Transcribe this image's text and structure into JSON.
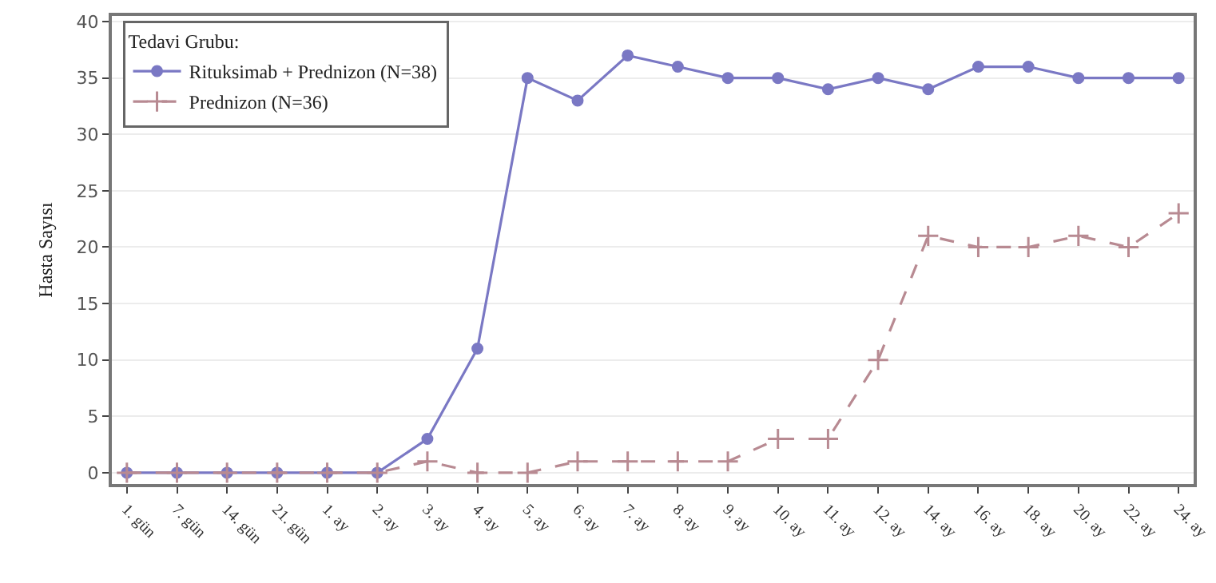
{
  "chart_data": {
    "type": "line",
    "ylabel": "Hasta Sayısı",
    "legend_title": "Tedavi Grubu:",
    "legend": "top left",
    "categories": [
      "1. gün",
      "7. gün",
      "14. gün",
      "21. gün",
      "1. ay",
      "2. ay",
      "3. ay",
      "4. ay",
      "5. ay",
      "6. ay",
      "7. ay",
      "8. ay",
      "9. ay",
      "10. ay",
      "11. ay",
      "12. ay",
      "14. ay",
      "16. ay",
      "18. ay",
      "20. ay",
      "22. ay",
      "24. ay"
    ],
    "series": [
      {
        "name": "Rituksimab + Prednizon (N=38)",
        "color": "#7a78c4",
        "marker": "circle",
        "line_style": "solid",
        "values": [
          0,
          0,
          0,
          0,
          0,
          0,
          3,
          11,
          35,
          33,
          37,
          36,
          35,
          35,
          34,
          35,
          34,
          36,
          36,
          35,
          35,
          35
        ]
      },
      {
        "name": "Prednizon (N=36)",
        "color": "#b88a92",
        "marker": "cross",
        "line_style": "dashed",
        "values": [
          0,
          0,
          0,
          0,
          0,
          0,
          1,
          0,
          0,
          1,
          1,
          1,
          1,
          3,
          3,
          10,
          21,
          20,
          20,
          21,
          20,
          23
        ]
      }
    ],
    "ylim": [
      -1,
      40.5
    ],
    "yticks": [
      0,
      5,
      10,
      15,
      20,
      25,
      30,
      35,
      40
    ],
    "grid": "y"
  }
}
